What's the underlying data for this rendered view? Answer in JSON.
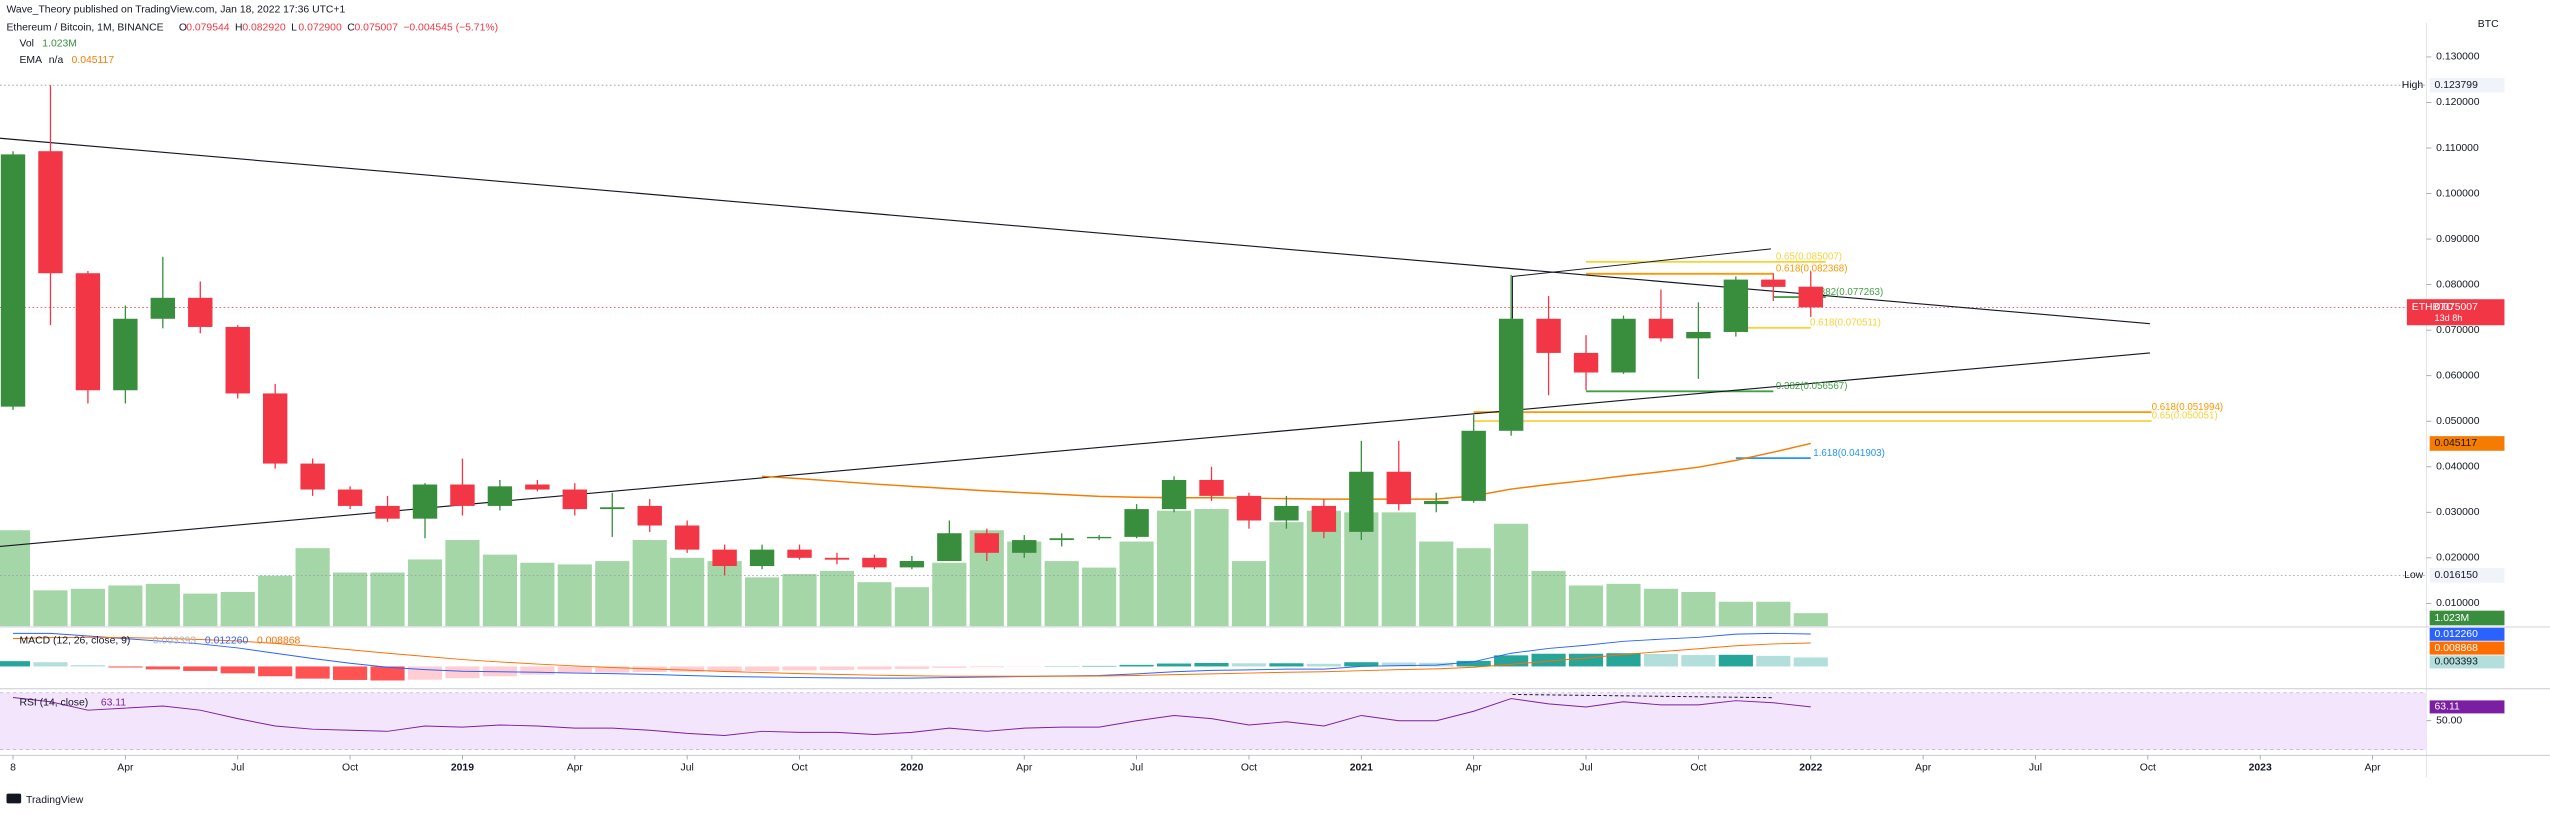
{
  "header": {
    "publisher": "Wave_Theory published on TradingView.com, Jan 18, 2022 17:36 UTC+1",
    "instrument": "Ethereum / Bitcoin, 1M, BINANCE",
    "ohlc_keys": [
      "O",
      "H",
      "L",
      "C"
    ],
    "ohlc_labels": [
      "0.079544",
      "0.082920",
      "0.072900",
      "0.075007"
    ],
    "change": "−0.004545 (−5.71%)",
    "ema_state": "n/a"
  },
  "footer": "TradingView",
  "chart_data": [
    {
      "type": "candlestick",
      "symbol": "ETHBTC",
      "currency": "BTC",
      "countdown": "13d 8h",
      "up_color": "#388e3c",
      "down_color": "#f23645",
      "x": [
        "2018-01",
        "2018-02",
        "2018-03",
        "2018-04",
        "2018-05",
        "2018-06",
        "2018-07",
        "2018-08",
        "2018-09",
        "2018-10",
        "2018-11",
        "2018-12",
        "2019-01",
        "2019-02",
        "2019-03",
        "2019-04",
        "2019-05",
        "2019-06",
        "2019-07",
        "2019-08",
        "2019-09",
        "2019-10",
        "2019-11",
        "2019-12",
        "2020-01",
        "2020-02",
        "2020-03",
        "2020-04",
        "2020-05",
        "2020-06",
        "2020-07",
        "2020-08",
        "2020-09",
        "2020-10",
        "2020-11",
        "2020-12",
        "2021-01",
        "2021-02",
        "2021-03",
        "2021-04",
        "2021-05",
        "2021-06",
        "2021-07",
        "2021-08",
        "2021-09",
        "2021-10",
        "2021-11",
        "2021-12",
        "2022-01"
      ],
      "open": [
        0.0532,
        0.1093,
        0.0825,
        0.0568,
        0.0725,
        0.0771,
        0.0707,
        0.0561,
        0.0407,
        0.035,
        0.0314,
        0.0286,
        0.0361,
        0.0314,
        0.0361,
        0.035,
        0.0307,
        0.0314,
        0.0271,
        0.0218,
        0.0182,
        0.0218,
        0.02,
        0.02,
        0.0179,
        0.0193,
        0.0254,
        0.0211,
        0.0239,
        0.0243,
        0.0246,
        0.0307,
        0.0371,
        0.0336,
        0.0282,
        0.0314,
        0.0257,
        0.0389,
        0.0318,
        0.0325,
        0.0479,
        0.0725,
        0.065,
        0.0607,
        0.0725,
        0.0682,
        0.0696,
        0.0811,
        0.079544
      ],
      "high": [
        0.1093,
        0.123799,
        0.083,
        0.0754,
        0.0861,
        0.0807,
        0.0711,
        0.0582,
        0.0418,
        0.0357,
        0.0336,
        0.0364,
        0.0418,
        0.0371,
        0.0371,
        0.0364,
        0.0343,
        0.0329,
        0.0282,
        0.0229,
        0.0229,
        0.0229,
        0.0211,
        0.0207,
        0.0204,
        0.0282,
        0.0264,
        0.025,
        0.0254,
        0.025,
        0.0318,
        0.0379,
        0.04,
        0.0343,
        0.0336,
        0.0329,
        0.0457,
        0.0457,
        0.0343,
        0.0514,
        0.0821,
        0.0775,
        0.0689,
        0.0732,
        0.0789,
        0.0761,
        0.0818,
        0.0825,
        0.08292
      ],
      "low": [
        0.0525,
        0.0711,
        0.0539,
        0.0539,
        0.0704,
        0.0693,
        0.055,
        0.0396,
        0.0336,
        0.0307,
        0.0279,
        0.0243,
        0.0293,
        0.0304,
        0.0346,
        0.0293,
        0.0246,
        0.0257,
        0.0211,
        0.01615,
        0.0175,
        0.0196,
        0.0186,
        0.0175,
        0.0175,
        0.0193,
        0.0193,
        0.02,
        0.0225,
        0.0239,
        0.0243,
        0.03,
        0.0325,
        0.0264,
        0.0264,
        0.0243,
        0.0239,
        0.0304,
        0.03,
        0.0321,
        0.0468,
        0.0557,
        0.0568,
        0.0604,
        0.0675,
        0.0593,
        0.0686,
        0.0764,
        0.0729
      ],
      "close": [
        0.1086,
        0.0825,
        0.0568,
        0.0725,
        0.0771,
        0.0707,
        0.0561,
        0.0407,
        0.035,
        0.0314,
        0.0286,
        0.0361,
        0.0314,
        0.0357,
        0.035,
        0.0307,
        0.0311,
        0.0271,
        0.0218,
        0.0182,
        0.0218,
        0.02,
        0.0196,
        0.0179,
        0.0193,
        0.0254,
        0.0211,
        0.0239,
        0.0243,
        0.0246,
        0.0307,
        0.0371,
        0.0336,
        0.0282,
        0.0314,
        0.0257,
        0.0389,
        0.0318,
        0.0325,
        0.0479,
        0.0725,
        0.065,
        0.0607,
        0.0725,
        0.0682,
        0.0696,
        0.0811,
        0.0795,
        0.075007
      ],
      "volume": {
        "name": "Vol",
        "color": "#a5d6a7",
        "last_label": "1.023M",
        "values": [
          7.55,
          2.82,
          2.94,
          3.2,
          3.33,
          2.56,
          2.69,
          3.97,
          6.14,
          4.22,
          4.22,
          5.25,
          6.78,
          5.63,
          4.99,
          4.86,
          5.12,
          6.78,
          5.38,
          5.12,
          3.84,
          4.1,
          4.35,
          3.46,
          3.07,
          4.99,
          7.55,
          6.66,
          5.12,
          4.61,
          6.66,
          9.09,
          9.22,
          5.12,
          8.19,
          9.09,
          8.96,
          8.96,
          6.66,
          6.14,
          8.06,
          4.35,
          3.2,
          3.33,
          2.94,
          2.69,
          1.92,
          1.92,
          1.023
        ]
      },
      "ema": {
        "name": "EMA",
        "color": "#f57c00",
        "values": [
          null,
          null,
          null,
          null,
          null,
          null,
          null,
          null,
          null,
          null,
          null,
          null,
          null,
          null,
          null,
          null,
          null,
          null,
          null,
          null,
          0.0379,
          0.0374,
          0.0368,
          0.0362,
          0.0357,
          0.0352,
          0.0347,
          0.0343,
          0.0339,
          0.0335,
          0.0333,
          0.0332,
          0.0332,
          0.0331,
          0.033,
          0.0329,
          0.0329,
          0.0329,
          0.0329,
          0.0336,
          0.0351,
          0.0361,
          0.037,
          0.038,
          0.0389,
          0.0399,
          0.0414,
          0.0432,
          0.045117
        ]
      },
      "high_marker": {
        "name": "High",
        "value": 0.123799,
        "value_label": "0.123799"
      },
      "low_marker": {
        "name": "Low",
        "value": 0.01615,
        "value_label": "0.016150"
      },
      "fib_levels": [
        {
          "label": "0.65(0.085007)",
          "value": 0.085007,
          "color": "#f5d33b"
        },
        {
          "label": "0.618(0.082368)",
          "value": 0.082368,
          "color": "#ff9800"
        },
        {
          "label": "0.382(0.077263)",
          "value": 0.077263,
          "color": "#43a047"
        },
        {
          "label": "0.618(0.070511)",
          "value": 0.070511,
          "color": "#f5d33b"
        },
        {
          "label": "0.382(0.056567)",
          "value": 0.056567,
          "color": "#43a047"
        },
        {
          "label": "0.618(0.051994)",
          "value": 0.051994,
          "color": "#ff9800"
        },
        {
          "label": "0.65(0.050051)",
          "value": 0.050051,
          "color": "#f5d33b"
        },
        {
          "label": "1.618(0.041903)",
          "value": 0.041903,
          "color": "#2196f3"
        }
      ],
      "ylim": [
        0.005,
        0.135
      ],
      "yticks": [
        {
          "value": 0.13,
          "label": "0.130000"
        },
        {
          "value": 0.12,
          "label": "0.120000"
        },
        {
          "value": 0.11,
          "label": "0.110000"
        },
        {
          "value": 0.1,
          "label": "0.100000"
        },
        {
          "value": 0.09,
          "label": "0.090000"
        },
        {
          "value": 0.08,
          "label": "0.080000"
        },
        {
          "value": 0.07,
          "label": "0.070000"
        },
        {
          "value": 0.06,
          "label": "0.060000"
        },
        {
          "value": 0.05,
          "label": "0.050000"
        },
        {
          "value": 0.04,
          "label": "0.040000"
        },
        {
          "value": 0.03,
          "label": "0.030000"
        },
        {
          "value": 0.02,
          "label": "0.020000"
        },
        {
          "value": 0.01,
          "label": "0.010000"
        }
      ],
      "xticks": [
        {
          "value": "2018-01",
          "label": "8"
        },
        {
          "value": "2018-04",
          "label": "Apr"
        },
        {
          "value": "2018-07",
          "label": "Jul"
        },
        {
          "value": "2018-10",
          "label": "Oct"
        },
        {
          "value": "2019-01",
          "label": "2019"
        },
        {
          "value": "2019-04",
          "label": "Apr"
        },
        {
          "value": "2019-07",
          "label": "Jul"
        },
        {
          "value": "2019-10",
          "label": "Oct"
        },
        {
          "value": "2020-01",
          "label": "2020"
        },
        {
          "value": "2020-04",
          "label": "Apr"
        },
        {
          "value": "2020-07",
          "label": "Jul"
        },
        {
          "value": "2020-10",
          "label": "Oct"
        },
        {
          "value": "2021-01",
          "label": "2021"
        },
        {
          "value": "2021-04",
          "label": "Apr"
        },
        {
          "value": "2021-07",
          "label": "Jul"
        },
        {
          "value": "2021-10",
          "label": "Oct"
        },
        {
          "value": "2022-01",
          "label": "2022"
        },
        {
          "value": "2022-04",
          "label": "Apr"
        },
        {
          "value": "2022-07",
          "label": "Jul"
        },
        {
          "value": "2022-10",
          "label": "Oct"
        },
        {
          "value": "2023-01",
          "label": "2023"
        },
        {
          "value": "2023-04",
          "label": "Apr"
        }
      ]
    },
    {
      "type": "macd",
      "title": "MACD (12, 26, close, 9)",
      "ylim": [
        -0.0075,
        0.014
      ],
      "macd": {
        "color": "#2962ff",
        "last_label": "0.012260",
        "values": [
          0.0125,
          0.0125,
          0.0115,
          0.0105,
          0.0095,
          0.0085,
          0.007,
          0.005,
          0.003,
          0.0012,
          -0.0003,
          -0.0012,
          -0.0018,
          -0.002,
          -0.0022,
          -0.0025,
          -0.0027,
          -0.003,
          -0.0034,
          -0.0038,
          -0.004,
          -0.0042,
          -0.0043,
          -0.0044,
          -0.0044,
          -0.0042,
          -0.004,
          -0.0038,
          -0.0036,
          -0.0034,
          -0.0028,
          -0.002,
          -0.0015,
          -0.0013,
          -0.001,
          -0.001,
          0.0,
          0.0003,
          0.0005,
          0.0018,
          0.005,
          0.0068,
          0.008,
          0.0095,
          0.0103,
          0.011,
          0.0122,
          0.0125,
          0.01226
        ]
      },
      "signal": {
        "color": "#ff6d00",
        "last_label": "0.008868",
        "values": [
          0.0105,
          0.0109,
          0.011,
          0.0109,
          0.0106,
          0.0102,
          0.0096,
          0.0087,
          0.0076,
          0.0063,
          0.005,
          0.0038,
          0.0026,
          0.0017,
          0.0009,
          0.0002,
          -0.0004,
          -0.0009,
          -0.0014,
          -0.0019,
          -0.0023,
          -0.0027,
          -0.003,
          -0.0033,
          -0.0035,
          -0.0037,
          -0.0037,
          -0.0037,
          -0.0037,
          -0.0036,
          -0.0034,
          -0.0031,
          -0.0028,
          -0.0025,
          -0.0022,
          -0.002,
          -0.0016,
          -0.0012,
          -0.0009,
          -0.0003,
          0.0008,
          0.002,
          0.0032,
          0.0045,
          0.0056,
          0.0067,
          0.0078,
          0.0085,
          0.008868
        ]
      },
      "histogram": {
        "last_label": "0.003393",
        "colors": {
          "up_strong": "#26a69a",
          "up_weak": "#b2dfdb",
          "down_strong": "#ff5252",
          "down_weak": "#ffcdd2"
        },
        "values": [
          0.002,
          0.0016,
          0.0005,
          -0.0004,
          -0.0011,
          -0.0017,
          -0.0026,
          -0.0037,
          -0.0046,
          -0.0051,
          -0.0053,
          -0.005,
          -0.0044,
          -0.0037,
          -0.0031,
          -0.0027,
          -0.0023,
          -0.0021,
          -0.002,
          -0.0019,
          -0.0017,
          -0.0015,
          -0.0013,
          -0.0011,
          -0.0009,
          -0.0005,
          -0.0003,
          -0.0001,
          0.0001,
          0.0002,
          0.0006,
          0.0011,
          0.0013,
          0.0012,
          0.0012,
          0.001,
          0.0016,
          0.0015,
          0.0014,
          0.0021,
          0.0042,
          0.0048,
          0.0048,
          0.005,
          0.0047,
          0.0043,
          0.0044,
          0.004,
          0.003393
        ]
      }
    },
    {
      "type": "rsi",
      "title": "RSI (14, close)",
      "color": "#7b1fa2",
      "band_color": "#f3e5fb",
      "ylim": [
        21,
        78
      ],
      "yticks": [
        {
          "value": 50,
          "label": "50.00"
        }
      ],
      "values": [
        72,
        68,
        60,
        62,
        64,
        60,
        52,
        45,
        42,
        41,
        40,
        45,
        44,
        46,
        45,
        43,
        43,
        41,
        38,
        36,
        40,
        39,
        39,
        37,
        39,
        43,
        40,
        43,
        44,
        44,
        50,
        55,
        52,
        46,
        49,
        45,
        55,
        50,
        50,
        59,
        71,
        66,
        63,
        68,
        65,
        65,
        69,
        67,
        63.11
      ]
    }
  ]
}
